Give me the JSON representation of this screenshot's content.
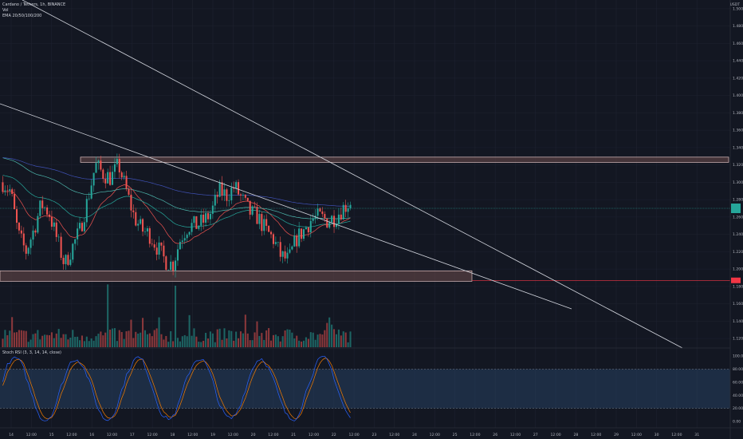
{
  "header": {
    "symbol_line": "Cardano / Tethers, 1h, BINANCE",
    "vol_label": "Vol",
    "ema_label": "EMA 20/50/100/200",
    "currency": "USDT"
  },
  "stoch_label": "Stoch RSI (3, 3, 14, 14, close)",
  "colors": {
    "background": "#131722",
    "grid": "#1e2230",
    "up": "#26a69a",
    "down": "#ef5350",
    "trendline": "#d1d4dc",
    "zone_fill": "#6d4c4c",
    "zone_border": "#e0c0c0",
    "last_price_badge": "#26a69a",
    "level_badge": "#f23645",
    "stoch_k": "#2962ff",
    "stoch_d": "#f57c00",
    "stoch_band": "#2a4a6e"
  },
  "chart_data": [
    {
      "type": "candlestick",
      "price_axis_ticks": [
        "1.500",
        "1.480",
        "1.460",
        "1.440",
        "1.420",
        "1.400",
        "1.380",
        "1.360",
        "1.340",
        "1.320",
        "1.300",
        "1.280",
        "1.260",
        "1.240",
        "1.220",
        "1.200",
        "1.180",
        "1.160",
        "1.140",
        "1.120"
      ],
      "time_axis_ticks": [
        "14",
        "12:00",
        "15",
        "12:00",
        "16",
        "12:00",
        "17",
        "12:00",
        "18",
        "12:00",
        "19",
        "12:00",
        "20",
        "12:00",
        "21",
        "12:00",
        "22",
        "12:00",
        "23",
        "12:00",
        "24",
        "12:00",
        "25",
        "12:00",
        "26",
        "12:00",
        "27",
        "12:00",
        "28",
        "12:00",
        "29",
        "12:00",
        "30",
        "12:00",
        "31"
      ],
      "ylim": [
        1.11,
        1.51
      ],
      "last_price": 1.27,
      "resistance_zone": [
        1.323,
        1.329
      ],
      "support_zone": [
        1.186,
        1.198
      ],
      "support_level": 1.187,
      "price_path": [
        1.3,
        1.29,
        1.24,
        1.22,
        1.245,
        1.275,
        1.265,
        1.235,
        1.205,
        1.225,
        1.245,
        1.28,
        1.32,
        1.31,
        1.305,
        1.32,
        1.29,
        1.26,
        1.245,
        1.24,
        1.225,
        1.21,
        1.205,
        1.235,
        1.25,
        1.25,
        1.255,
        1.265,
        1.29,
        1.285,
        1.295,
        1.28,
        1.265,
        1.26,
        1.245,
        1.235,
        1.215,
        1.21,
        1.235,
        1.245,
        1.258,
        1.26,
        1.256,
        1.26,
        1.27,
        1.278
      ]
    },
    {
      "type": "bar",
      "title": "Vol"
    },
    {
      "type": "line",
      "title": "Stoch RSI (3, 3, 14, 14, close)",
      "axis_ticks": [
        "100.00",
        "80.00",
        "60.00",
        "40.00",
        "20.00",
        "0.00"
      ],
      "ylim": [
        0,
        100
      ],
      "band": [
        20,
        80
      ]
    }
  ]
}
